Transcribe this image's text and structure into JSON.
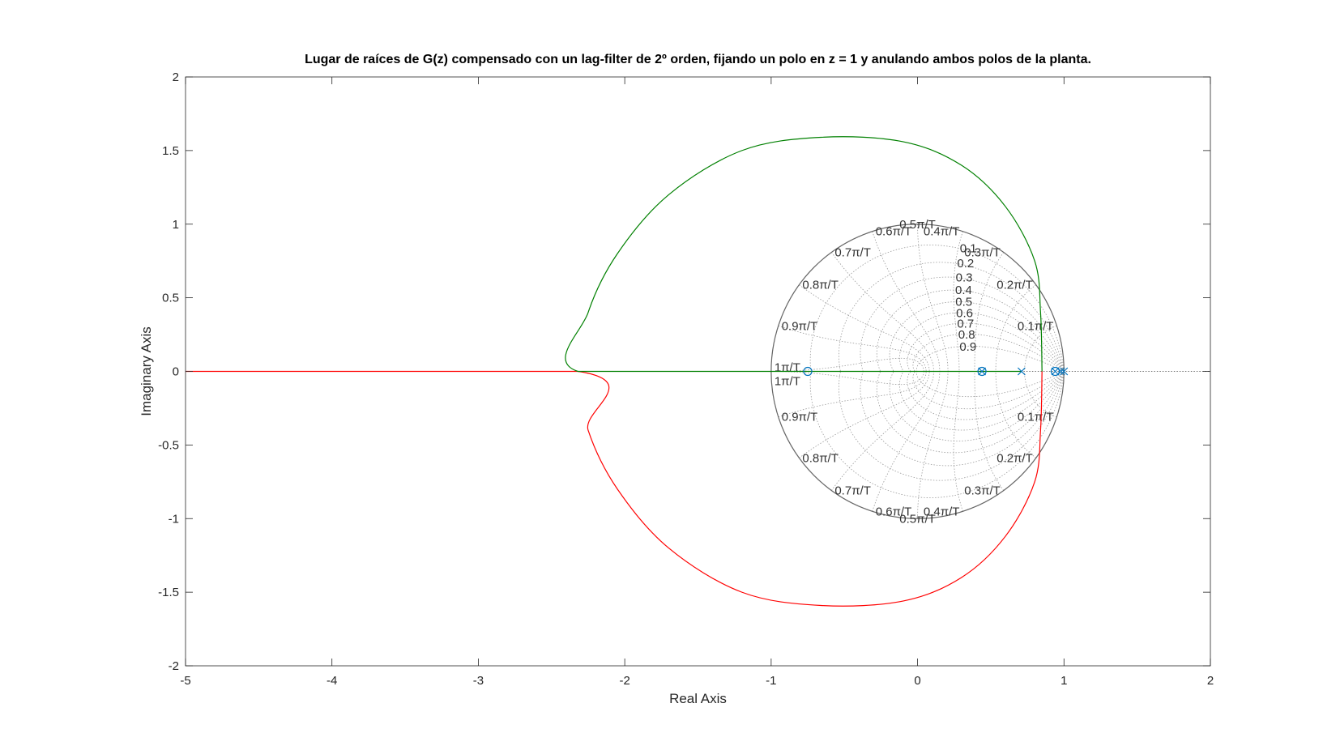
{
  "chart_data": {
    "type": "line",
    "title": "Lugar de raíces de G(z) compensado con un lag-filter de 2º orden, fijando un polo en z = 1 y anulando ambos polos de la planta.",
    "xlabel": "Real Axis",
    "ylabel": "Imaginary Axis",
    "xlim": [
      -5,
      2
    ],
    "ylim": [
      -2,
      2
    ],
    "xticks": [
      -5,
      -4,
      -3,
      -2,
      -1,
      0,
      1,
      2
    ],
    "yticks": [
      -2,
      -1.5,
      -1,
      -0.5,
      0,
      0.5,
      1,
      1.5,
      2
    ],
    "grid": "zgrid",
    "zgrid": {
      "damping_labels": [
        "0.1",
        "0.2",
        "0.3",
        "0.4",
        "0.5",
        "0.6",
        "0.7",
        "0.8",
        "0.9"
      ],
      "damping_values": [
        0.1,
        0.2,
        0.3,
        0.4,
        0.5,
        0.6,
        0.7,
        0.8,
        0.9
      ],
      "frequency_labels": [
        "0.1π/T",
        "0.2π/T",
        "0.3π/T",
        "0.4π/T",
        "0.5π/T",
        "0.6π/T",
        "0.7π/T",
        "0.8π/T",
        "0.9π/T",
        "1π/T"
      ],
      "frequency_values": [
        0.1,
        0.2,
        0.3,
        0.4,
        0.5,
        0.6,
        0.7,
        0.8,
        0.9,
        1.0
      ]
    },
    "series": [
      {
        "color": "#ff0000",
        "branch": "lower and real-negative",
        "points": [
          [
            0.85,
            0
          ],
          [
            0.84,
            -0.4
          ],
          [
            0.8,
            -0.75
          ],
          [
            0.6,
            -1.12
          ],
          [
            0.3,
            -1.4
          ],
          [
            -0.1,
            -1.56
          ],
          [
            -0.66,
            -1.59
          ],
          [
            -1.2,
            -1.5
          ],
          [
            -1.7,
            -1.2
          ],
          [
            -2.05,
            -0.8
          ],
          [
            -2.25,
            -0.4
          ],
          [
            -2.32,
            0
          ],
          [
            -5,
            0
          ]
        ]
      },
      {
        "color": "#008000",
        "branch": "upper and real",
        "points": [
          [
            0.85,
            0
          ],
          [
            0.84,
            0.4
          ],
          [
            0.8,
            0.75
          ],
          [
            0.6,
            1.12
          ],
          [
            0.3,
            1.4
          ],
          [
            -0.1,
            1.56
          ],
          [
            -0.66,
            1.59
          ],
          [
            -1.2,
            1.5
          ],
          [
            -1.7,
            1.2
          ],
          [
            -2.05,
            0.8
          ],
          [
            -2.25,
            0.4
          ],
          [
            -2.32,
            0
          ],
          [
            -1,
            0
          ],
          [
            0.71,
            0
          ]
        ]
      }
    ],
    "poles": [
      0.71,
      0.94,
      0.98,
      1.0,
      0.44
    ],
    "zeros": [
      -0.75,
      0.44,
      0.94
    ],
    "marker_color": "#0072bd"
  }
}
